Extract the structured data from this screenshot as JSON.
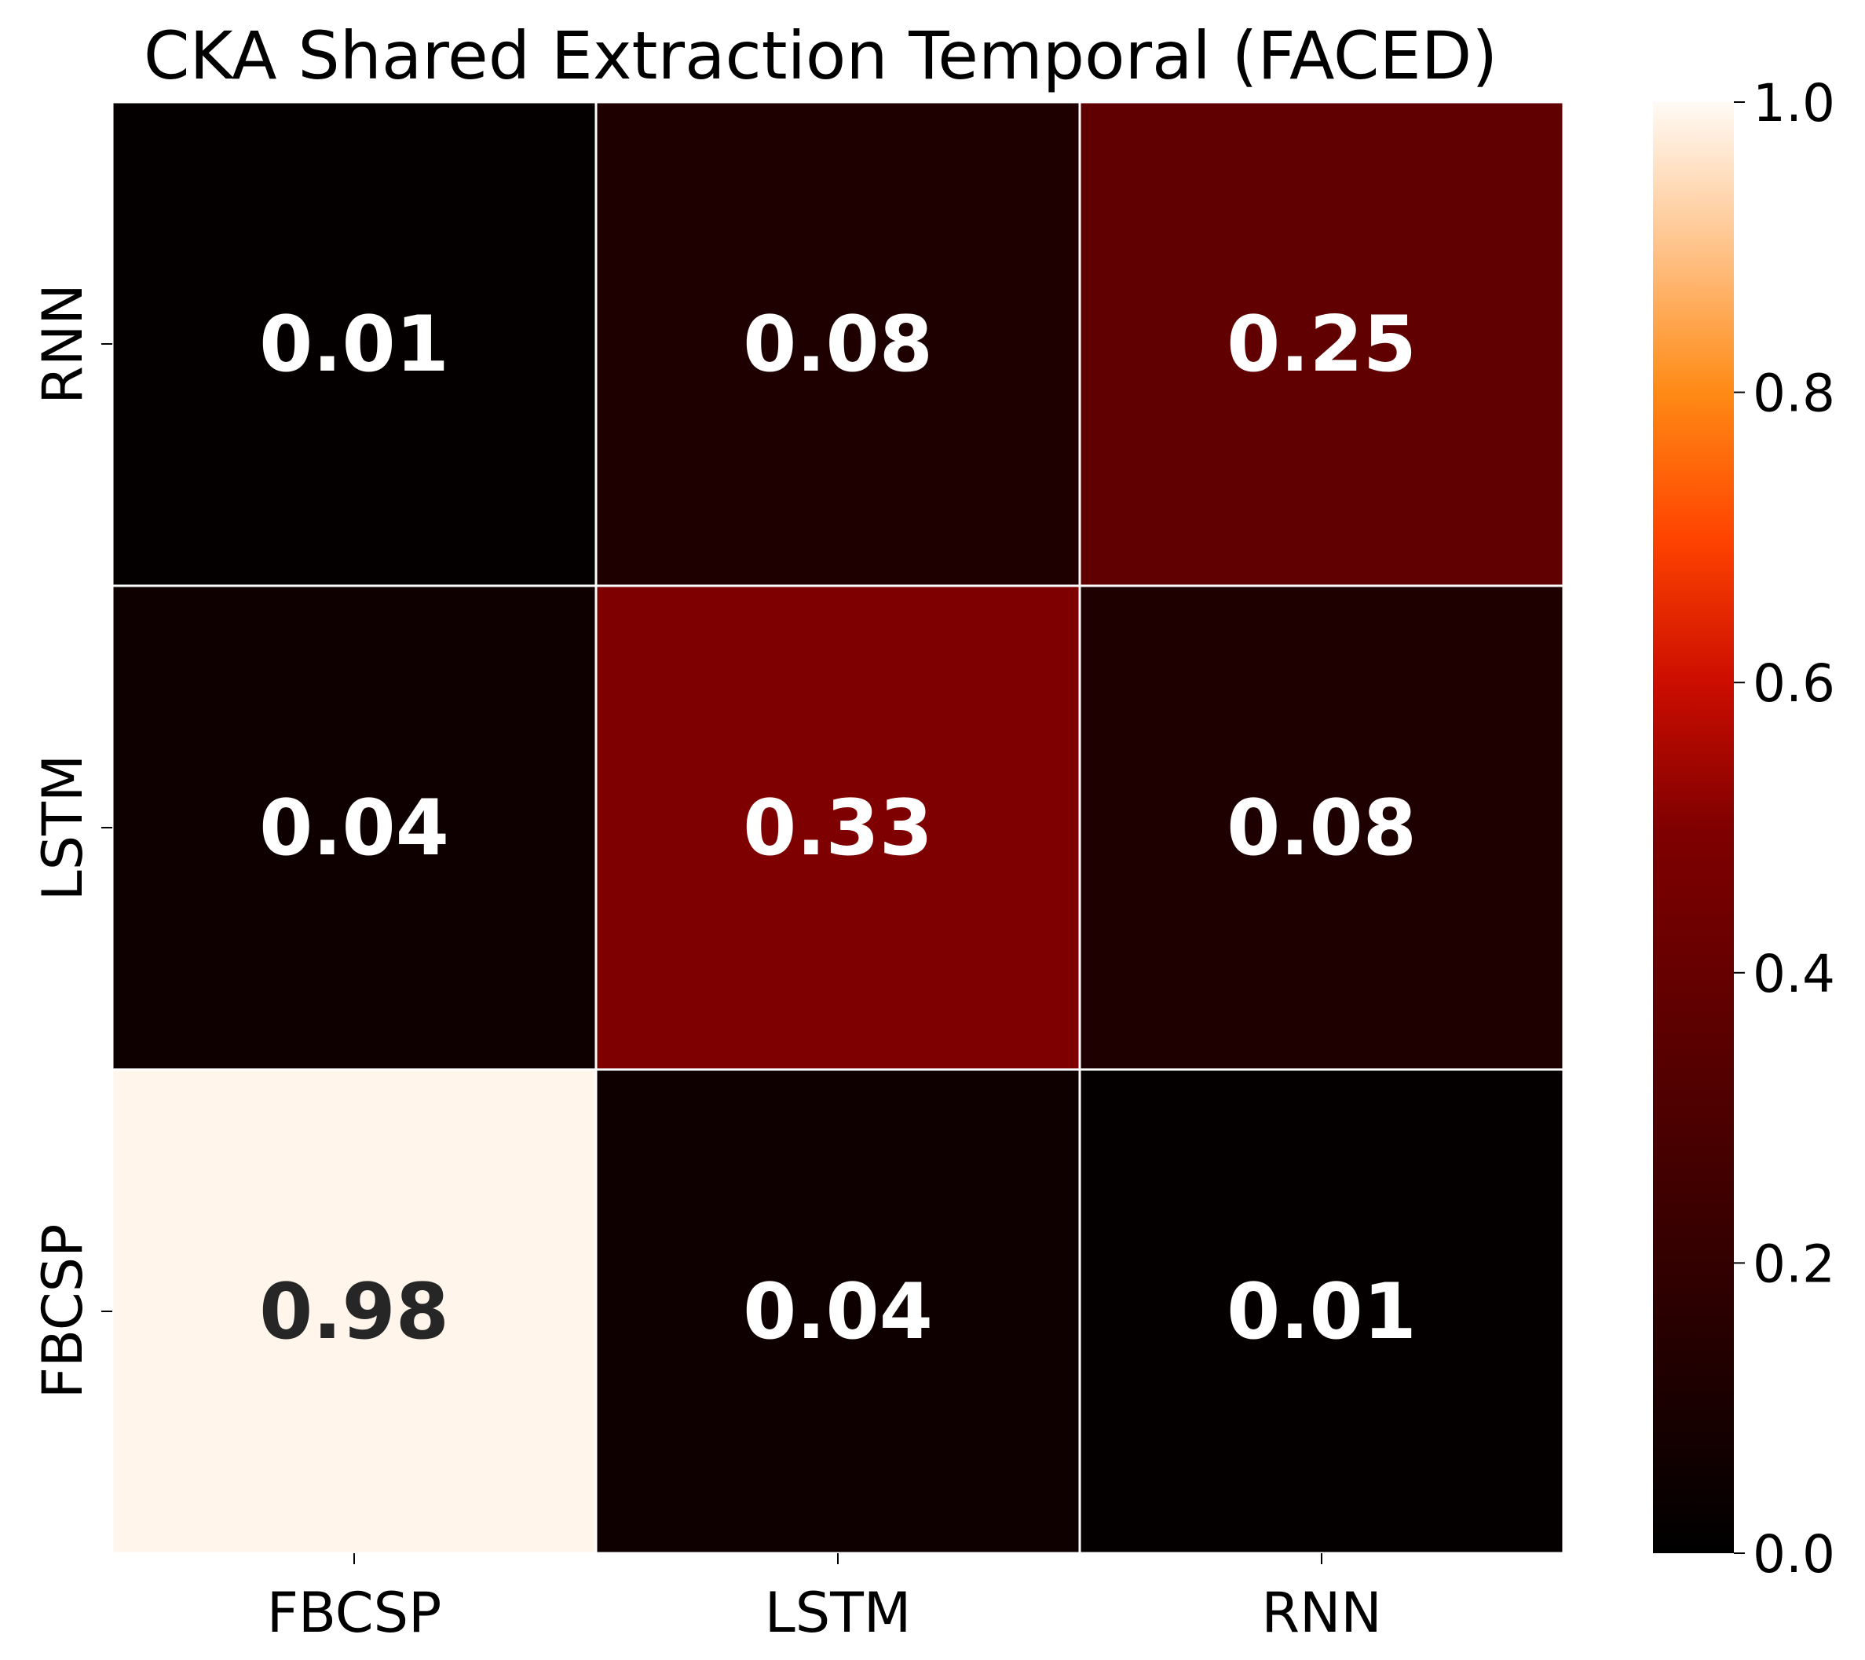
{
  "chart_data": {
    "type": "heatmap",
    "title": "CKA Shared Extraction Temporal (FACED)",
    "x_categories": [
      "FBCSP",
      "LSTM",
      "RNN"
    ],
    "y_categories_top_to_bottom": [
      "RNN",
      "LSTM",
      "FBCSP"
    ],
    "values_top_to_bottom": [
      [
        0.01,
        0.08,
        0.25
      ],
      [
        0.04,
        0.33,
        0.08
      ],
      [
        0.98,
        0.04,
        0.01
      ]
    ],
    "cell_labels_top_to_bottom": [
      [
        "0.01",
        "0.08",
        "0.25"
      ],
      [
        "0.04",
        "0.33",
        "0.08"
      ],
      [
        "0.98",
        "0.04",
        "0.01"
      ]
    ],
    "colormap": "gist_heat",
    "colorbar": {
      "range": [
        0.0,
        1.0
      ],
      "ticks": [
        0.0,
        0.2,
        0.4,
        0.6,
        0.8,
        1.0
      ],
      "tick_labels": [
        "0.0",
        "0.2",
        "0.4",
        "0.6",
        "0.8",
        "1.0"
      ],
      "placement": "right"
    },
    "grid_line_color": "#ffffff",
    "dark_text_color": "#262626",
    "light_text_color": "#ffffff"
  }
}
